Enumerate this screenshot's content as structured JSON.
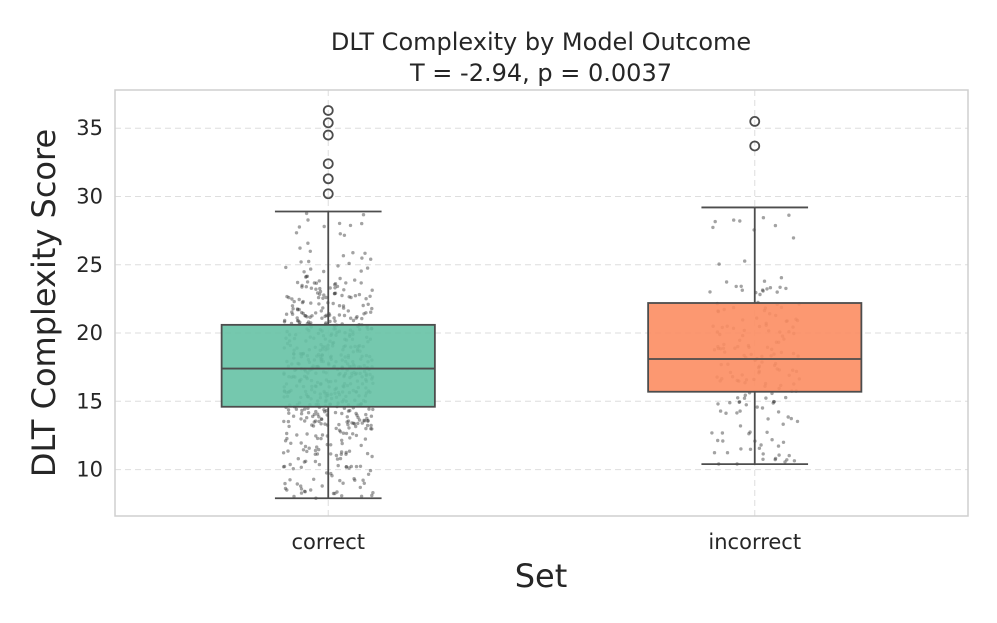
{
  "chart_data": {
    "type": "box",
    "title": "DLT Complexity by Model Outcome",
    "subtitle": "T = -2.94, p = 0.0037",
    "xlabel": "Set",
    "ylabel": "DLT Complexity Score",
    "ylim": [
      6.6,
      37.8
    ],
    "yticks": [
      10,
      15,
      20,
      25,
      30,
      35
    ],
    "grid": true,
    "categories": [
      "correct",
      "incorrect"
    ],
    "series": [
      {
        "name": "correct",
        "color": "#66c2a5",
        "whisker_low": 7.9,
        "q1": 14.6,
        "median": 17.4,
        "q3": 20.6,
        "whisker_high": 28.9,
        "outliers": [
          30.2,
          31.3,
          32.4,
          34.5,
          35.4,
          36.3
        ],
        "n_points": 600
      },
      {
        "name": "incorrect",
        "color": "#fc8d62",
        "whisker_low": 10.4,
        "q1": 15.7,
        "median": 18.1,
        "q3": 22.2,
        "whisker_high": 29.2,
        "outliers": [
          33.7,
          35.5
        ],
        "n_points": 180
      }
    ]
  }
}
